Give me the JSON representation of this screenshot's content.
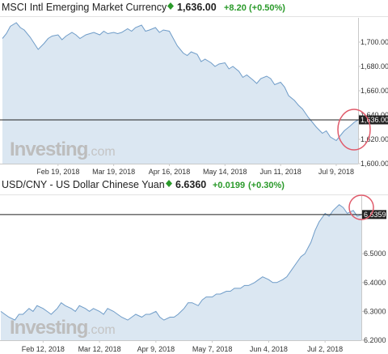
{
  "watermark": {
    "brand": "Investing",
    "suffix": ".com"
  },
  "colors": {
    "line": "#6f9cc8",
    "area": "#dbe7f2",
    "positive": "#2a9a2a",
    "ref_line": "#222222",
    "circle": "#e05a6a",
    "tag_bg": "#222222"
  },
  "chart_data": [
    {
      "type": "area",
      "title": "MSCI Intl Emerging Market Currency",
      "price": "1,636.00",
      "change": "+8.20",
      "change_pct": "(+0.50%)",
      "up_icon": "diamond-up-icon",
      "current_label": "1,636.00",
      "current_value": 1636,
      "ylim": [
        1600,
        1720
      ],
      "y_ticks": [
        1600,
        1620,
        1640,
        1660,
        1680,
        1700
      ],
      "y_tick_labels": [
        "1,600.00",
        "1,620.00",
        "1,640.00",
        "1,660.00",
        "1,680.00",
        "1,700.00"
      ],
      "x_range": [
        "2018-01-22",
        "2018-07-20"
      ],
      "x_ticks": [
        {
          "date": "2018-02-19",
          "label": "Feb 19, 2018"
        },
        {
          "date": "2018-03-19",
          "label": "Mar 19, 2018"
        },
        {
          "date": "2018-04-16",
          "label": "Apr 16, 2018"
        },
        {
          "date": "2018-05-14",
          "label": "May 14, 2018"
        },
        {
          "date": "2018-06-11",
          "label": "Jun 11, 2018"
        },
        {
          "date": "2018-07-09",
          "label": "Jul 9, 2018"
        }
      ],
      "series": [
        {
          "points": [
            [
              "2018-01-22",
              1703
            ],
            [
              "2018-01-24",
              1707
            ],
            [
              "2018-01-26",
              1713
            ],
            [
              "2018-01-29",
              1716
            ],
            [
              "2018-01-31",
              1712
            ],
            [
              "2018-02-02",
              1710
            ],
            [
              "2018-02-05",
              1704
            ],
            [
              "2018-02-07",
              1699
            ],
            [
              "2018-02-09",
              1694
            ],
            [
              "2018-02-12",
              1699
            ],
            [
              "2018-02-14",
              1703
            ],
            [
              "2018-02-16",
              1705
            ],
            [
              "2018-02-19",
              1706
            ],
            [
              "2018-02-21",
              1702
            ],
            [
              "2018-02-23",
              1705
            ],
            [
              "2018-02-26",
              1708
            ],
            [
              "2018-02-28",
              1706
            ],
            [
              "2018-03-02",
              1703
            ],
            [
              "2018-03-05",
              1706
            ],
            [
              "2018-03-07",
              1707
            ],
            [
              "2018-03-09",
              1708
            ],
            [
              "2018-03-12",
              1706
            ],
            [
              "2018-03-14",
              1709
            ],
            [
              "2018-03-16",
              1707
            ],
            [
              "2018-03-19",
              1708
            ],
            [
              "2018-03-21",
              1707
            ],
            [
              "2018-03-23",
              1708
            ],
            [
              "2018-03-26",
              1711
            ],
            [
              "2018-03-28",
              1709
            ],
            [
              "2018-03-30",
              1712
            ],
            [
              "2018-04-02",
              1714
            ],
            [
              "2018-04-04",
              1709
            ],
            [
              "2018-04-06",
              1710
            ],
            [
              "2018-04-09",
              1712
            ],
            [
              "2018-04-11",
              1708
            ],
            [
              "2018-04-13",
              1710
            ],
            [
              "2018-04-16",
              1709
            ],
            [
              "2018-04-18",
              1703
            ],
            [
              "2018-04-20",
              1697
            ],
            [
              "2018-04-23",
              1691
            ],
            [
              "2018-04-25",
              1689
            ],
            [
              "2018-04-27",
              1692
            ],
            [
              "2018-04-30",
              1690
            ],
            [
              "2018-05-02",
              1684
            ],
            [
              "2018-05-04",
              1686
            ],
            [
              "2018-05-07",
              1683
            ],
            [
              "2018-05-09",
              1680
            ],
            [
              "2018-05-11",
              1682
            ],
            [
              "2018-05-14",
              1683
            ],
            [
              "2018-05-16",
              1678
            ],
            [
              "2018-05-18",
              1680
            ],
            [
              "2018-05-21",
              1676
            ],
            [
              "2018-05-23",
              1671
            ],
            [
              "2018-05-25",
              1673
            ],
            [
              "2018-05-28",
              1669
            ],
            [
              "2018-05-30",
              1666
            ],
            [
              "2018-06-01",
              1670
            ],
            [
              "2018-06-04",
              1672
            ],
            [
              "2018-06-06",
              1670
            ],
            [
              "2018-06-08",
              1665
            ],
            [
              "2018-06-11",
              1667
            ],
            [
              "2018-06-13",
              1663
            ],
            [
              "2018-06-15",
              1656
            ],
            [
              "2018-06-18",
              1652
            ],
            [
              "2018-06-20",
              1648
            ],
            [
              "2018-06-22",
              1645
            ],
            [
              "2018-06-25",
              1638
            ],
            [
              "2018-06-27",
              1634
            ],
            [
              "2018-06-29",
              1630
            ],
            [
              "2018-07-02",
              1625
            ],
            [
              "2018-07-04",
              1627
            ],
            [
              "2018-07-06",
              1622
            ],
            [
              "2018-07-09",
              1619
            ],
            [
              "2018-07-11",
              1623
            ],
            [
              "2018-07-13",
              1627
            ],
            [
              "2018-07-16",
              1631
            ],
            [
              "2018-07-18",
              1634
            ],
            [
              "2018-07-20",
              1636
            ]
          ]
        }
      ]
    },
    {
      "type": "area",
      "title": "USD/CNY - US Dollar Chinese Yuan",
      "price": "6.6360",
      "change": "+0.0199",
      "change_pct": "(+0.30%)",
      "up_icon": "diamond-up-icon",
      "current_label": "6.6359",
      "current_value": 6.6359,
      "ylim": [
        6.2,
        6.7
      ],
      "y_ticks": [
        6.2,
        6.3,
        6.4,
        6.5
      ],
      "y_tick_labels": [
        "6.2000",
        "6.3000",
        "6.4000",
        "6.5000"
      ],
      "x_range": [
        "2018-01-22",
        "2018-07-20"
      ],
      "x_ticks": [
        {
          "date": "2018-02-12",
          "label": "Feb 12, 2018"
        },
        {
          "date": "2018-03-12",
          "label": "Mar 12, 2018"
        },
        {
          "date": "2018-04-09",
          "label": "Apr 9, 2018"
        },
        {
          "date": "2018-05-07",
          "label": "May 7, 2018"
        },
        {
          "date": "2018-06-04",
          "label": "Jun 4, 2018"
        },
        {
          "date": "2018-07-02",
          "label": "Jul 2, 2018"
        }
      ],
      "series": [
        {
          "points": [
            [
              "2018-01-22",
              6.3
            ],
            [
              "2018-01-24",
              6.29
            ],
            [
              "2018-01-26",
              6.28
            ],
            [
              "2018-01-29",
              6.27
            ],
            [
              "2018-01-31",
              6.29
            ],
            [
              "2018-02-02",
              6.29
            ],
            [
              "2018-02-05",
              6.31
            ],
            [
              "2018-02-07",
              6.3
            ],
            [
              "2018-02-09",
              6.32
            ],
            [
              "2018-02-12",
              6.31
            ],
            [
              "2018-02-14",
              6.3
            ],
            [
              "2018-02-16",
              6.29
            ],
            [
              "2018-02-19",
              6.31
            ],
            [
              "2018-02-21",
              6.33
            ],
            [
              "2018-02-23",
              6.32
            ],
            [
              "2018-02-26",
              6.31
            ],
            [
              "2018-02-28",
              6.3
            ],
            [
              "2018-03-02",
              6.32
            ],
            [
              "2018-03-05",
              6.31
            ],
            [
              "2018-03-07",
              6.3
            ],
            [
              "2018-03-09",
              6.31
            ],
            [
              "2018-03-12",
              6.3
            ],
            [
              "2018-03-14",
              6.29
            ],
            [
              "2018-03-16",
              6.31
            ],
            [
              "2018-03-19",
              6.3
            ],
            [
              "2018-03-21",
              6.29
            ],
            [
              "2018-03-23",
              6.28
            ],
            [
              "2018-03-26",
              6.27
            ],
            [
              "2018-03-28",
              6.28
            ],
            [
              "2018-03-30",
              6.29
            ],
            [
              "2018-04-02",
              6.28
            ],
            [
              "2018-04-04",
              6.29
            ],
            [
              "2018-04-06",
              6.29
            ],
            [
              "2018-04-09",
              6.3
            ],
            [
              "2018-04-11",
              6.28
            ],
            [
              "2018-04-13",
              6.27
            ],
            [
              "2018-04-16",
              6.28
            ],
            [
              "2018-04-18",
              6.28
            ],
            [
              "2018-04-20",
              6.29
            ],
            [
              "2018-04-23",
              6.31
            ],
            [
              "2018-04-25",
              6.33
            ],
            [
              "2018-04-27",
              6.33
            ],
            [
              "2018-04-30",
              6.32
            ],
            [
              "2018-05-02",
              6.34
            ],
            [
              "2018-05-04",
              6.35
            ],
            [
              "2018-05-07",
              6.35
            ],
            [
              "2018-05-09",
              6.36
            ],
            [
              "2018-05-11",
              6.36
            ],
            [
              "2018-05-14",
              6.37
            ],
            [
              "2018-05-16",
              6.37
            ],
            [
              "2018-05-18",
              6.38
            ],
            [
              "2018-05-21",
              6.38
            ],
            [
              "2018-05-23",
              6.39
            ],
            [
              "2018-05-25",
              6.39
            ],
            [
              "2018-05-28",
              6.4
            ],
            [
              "2018-05-30",
              6.41
            ],
            [
              "2018-06-01",
              6.42
            ],
            [
              "2018-06-04",
              6.41
            ],
            [
              "2018-06-06",
              6.4
            ],
            [
              "2018-06-08",
              6.4
            ],
            [
              "2018-06-11",
              6.41
            ],
            [
              "2018-06-13",
              6.42
            ],
            [
              "2018-06-15",
              6.44
            ],
            [
              "2018-06-18",
              6.47
            ],
            [
              "2018-06-20",
              6.49
            ],
            [
              "2018-06-22",
              6.5
            ],
            [
              "2018-06-25",
              6.54
            ],
            [
              "2018-06-27",
              6.58
            ],
            [
              "2018-06-29",
              6.61
            ],
            [
              "2018-07-02",
              6.64
            ],
            [
              "2018-07-04",
              6.63
            ],
            [
              "2018-07-06",
              6.65
            ],
            [
              "2018-07-09",
              6.67
            ],
            [
              "2018-07-11",
              6.66
            ],
            [
              "2018-07-13",
              6.64
            ],
            [
              "2018-07-16",
              6.65
            ],
            [
              "2018-07-18",
              6.63
            ],
            [
              "2018-07-20",
              6.636
            ]
          ]
        }
      ]
    }
  ]
}
